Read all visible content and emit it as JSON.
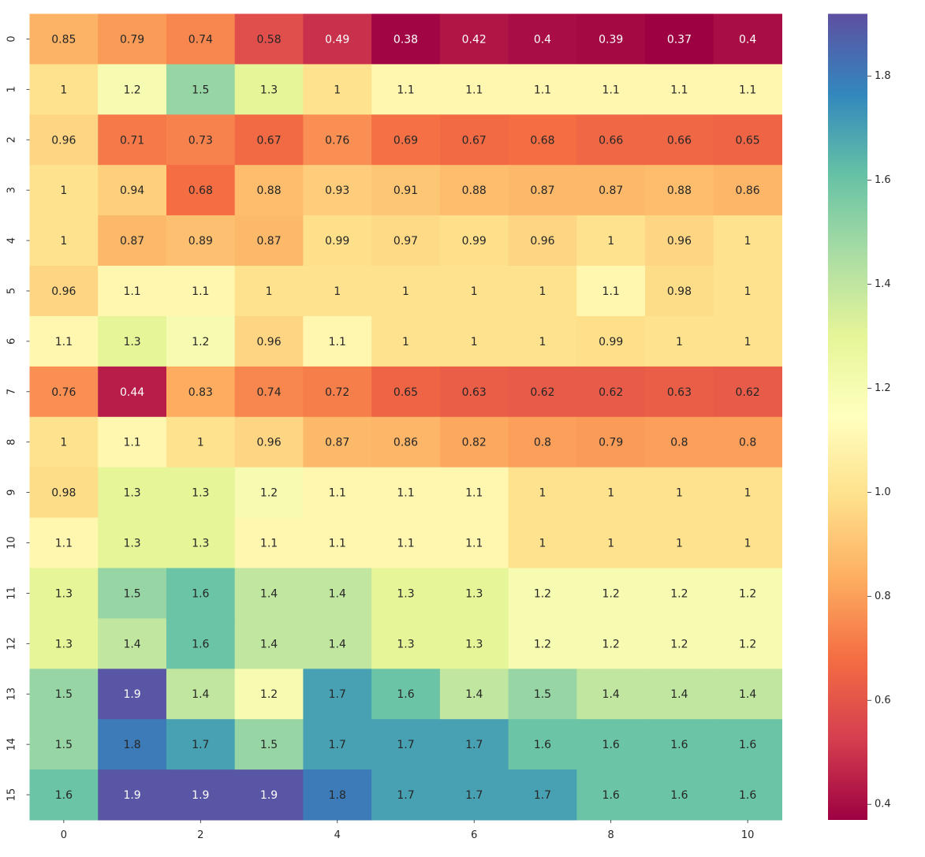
{
  "chart_data": {
    "type": "heatmap",
    "title": "",
    "xlabel": "",
    "ylabel": "",
    "x_tick_labels": [
      "0",
      "2",
      "4",
      "6",
      "8",
      "10"
    ],
    "x_tick_indices": [
      0,
      2,
      4,
      6,
      8,
      10
    ],
    "y_tick_labels": [
      "0",
      "1",
      "2",
      "3",
      "4",
      "5",
      "6",
      "7",
      "8",
      "9",
      "10",
      "11",
      "12",
      "13",
      "14",
      "15"
    ],
    "colormap": "Spectral",
    "vmin": 0.37,
    "vmax": 1.92,
    "colorbar": {
      "ticks": [
        0.4,
        0.6,
        0.8,
        1.0,
        1.2,
        1.4,
        1.6,
        1.8
      ],
      "tick_labels": [
        "0.4",
        "0.6",
        "0.8",
        "1.0",
        "1.2",
        "1.4",
        "1.6",
        "1.8"
      ],
      "placement": "right"
    },
    "values": [
      [
        0.85,
        0.79,
        0.74,
        0.58,
        0.49,
        0.38,
        0.42,
        0.4,
        0.39,
        0.37,
        0.4
      ],
      [
        1.0,
        1.2,
        1.5,
        1.3,
        1.0,
        1.1,
        1.1,
        1.1,
        1.1,
        1.1,
        1.1
      ],
      [
        0.96,
        0.71,
        0.73,
        0.67,
        0.76,
        0.69,
        0.67,
        0.68,
        0.66,
        0.66,
        0.65
      ],
      [
        1.0,
        0.94,
        0.68,
        0.88,
        0.93,
        0.91,
        0.88,
        0.87,
        0.87,
        0.88,
        0.86
      ],
      [
        1.0,
        0.87,
        0.89,
        0.87,
        0.99,
        0.97,
        0.99,
        0.96,
        1.0,
        0.96,
        1.0
      ],
      [
        0.96,
        1.1,
        1.1,
        1.0,
        1.0,
        1.0,
        1.0,
        1.0,
        1.1,
        0.98,
        1.0
      ],
      [
        1.1,
        1.3,
        1.2,
        0.96,
        1.1,
        1.0,
        1.0,
        1.0,
        0.99,
        1.0,
        1.0
      ],
      [
        0.76,
        0.44,
        0.83,
        0.74,
        0.72,
        0.65,
        0.63,
        0.62,
        0.62,
        0.63,
        0.62
      ],
      [
        1.0,
        1.1,
        1.0,
        0.96,
        0.87,
        0.86,
        0.82,
        0.8,
        0.79,
        0.8,
        0.8
      ],
      [
        0.98,
        1.3,
        1.3,
        1.2,
        1.1,
        1.1,
        1.1,
        1.0,
        1.0,
        1.0,
        1.0
      ],
      [
        1.1,
        1.3,
        1.3,
        1.1,
        1.1,
        1.1,
        1.1,
        1.0,
        1.0,
        1.0,
        1.0
      ],
      [
        1.3,
        1.5,
        1.6,
        1.4,
        1.4,
        1.3,
        1.3,
        1.2,
        1.2,
        1.2,
        1.2
      ],
      [
        1.3,
        1.4,
        1.6,
        1.4,
        1.4,
        1.3,
        1.3,
        1.2,
        1.2,
        1.2,
        1.2
      ],
      [
        1.5,
        1.9,
        1.4,
        1.2,
        1.7,
        1.6,
        1.4,
        1.5,
        1.4,
        1.4,
        1.4
      ],
      [
        1.5,
        1.8,
        1.7,
        1.5,
        1.7,
        1.7,
        1.7,
        1.6,
        1.6,
        1.6,
        1.6
      ],
      [
        1.6,
        1.9,
        1.9,
        1.9,
        1.8,
        1.7,
        1.7,
        1.7,
        1.6,
        1.6,
        1.6
      ]
    ],
    "cell_labels": [
      [
        "0.85",
        "0.79",
        "0.74",
        "0.58",
        "0.49",
        "0.38",
        "0.42",
        "0.4",
        "0.39",
        "0.37",
        "0.4"
      ],
      [
        "1",
        "1.2",
        "1.5",
        "1.3",
        "1",
        "1.1",
        "1.1",
        "1.1",
        "1.1",
        "1.1",
        "1.1"
      ],
      [
        "0.96",
        "0.71",
        "0.73",
        "0.67",
        "0.76",
        "0.69",
        "0.67",
        "0.68",
        "0.66",
        "0.66",
        "0.65"
      ],
      [
        "1",
        "0.94",
        "0.68",
        "0.88",
        "0.93",
        "0.91",
        "0.88",
        "0.87",
        "0.87",
        "0.88",
        "0.86"
      ],
      [
        "1",
        "0.87",
        "0.89",
        "0.87",
        "0.99",
        "0.97",
        "0.99",
        "0.96",
        "1",
        "0.96",
        "1"
      ],
      [
        "0.96",
        "1.1",
        "1.1",
        "1",
        "1",
        "1",
        "1",
        "1",
        "1.1",
        "0.98",
        "1"
      ],
      [
        "1.1",
        "1.3",
        "1.2",
        "0.96",
        "1.1",
        "1",
        "1",
        "1",
        "0.99",
        "1",
        "1"
      ],
      [
        "0.76",
        "0.44",
        "0.83",
        "0.74",
        "0.72",
        "0.65",
        "0.63",
        "0.62",
        "0.62",
        "0.63",
        "0.62"
      ],
      [
        "1",
        "1.1",
        "1",
        "0.96",
        "0.87",
        "0.86",
        "0.82",
        "0.8",
        "0.79",
        "0.8",
        "0.8"
      ],
      [
        "0.98",
        "1.3",
        "1.3",
        "1.2",
        "1.1",
        "1.1",
        "1.1",
        "1",
        "1",
        "1",
        "1"
      ],
      [
        "1.1",
        "1.3",
        "1.3",
        "1.1",
        "1.1",
        "1.1",
        "1.1",
        "1",
        "1",
        "1",
        "1"
      ],
      [
        "1.3",
        "1.5",
        "1.6",
        "1.4",
        "1.4",
        "1.3",
        "1.3",
        "1.2",
        "1.2",
        "1.2",
        "1.2"
      ],
      [
        "1.3",
        "1.4",
        "1.6",
        "1.4",
        "1.4",
        "1.3",
        "1.3",
        "1.2",
        "1.2",
        "1.2",
        "1.2"
      ],
      [
        "1.5",
        "1.9",
        "1.4",
        "1.2",
        "1.7",
        "1.6",
        "1.4",
        "1.5",
        "1.4",
        "1.4",
        "1.4"
      ],
      [
        "1.5",
        "1.8",
        "1.7",
        "1.5",
        "1.7",
        "1.7",
        "1.7",
        "1.6",
        "1.6",
        "1.6",
        "1.6"
      ],
      [
        "1.6",
        "1.9",
        "1.9",
        "1.9",
        "1.8",
        "1.7",
        "1.7",
        "1.7",
        "1.6",
        "1.6",
        "1.6"
      ]
    ]
  }
}
